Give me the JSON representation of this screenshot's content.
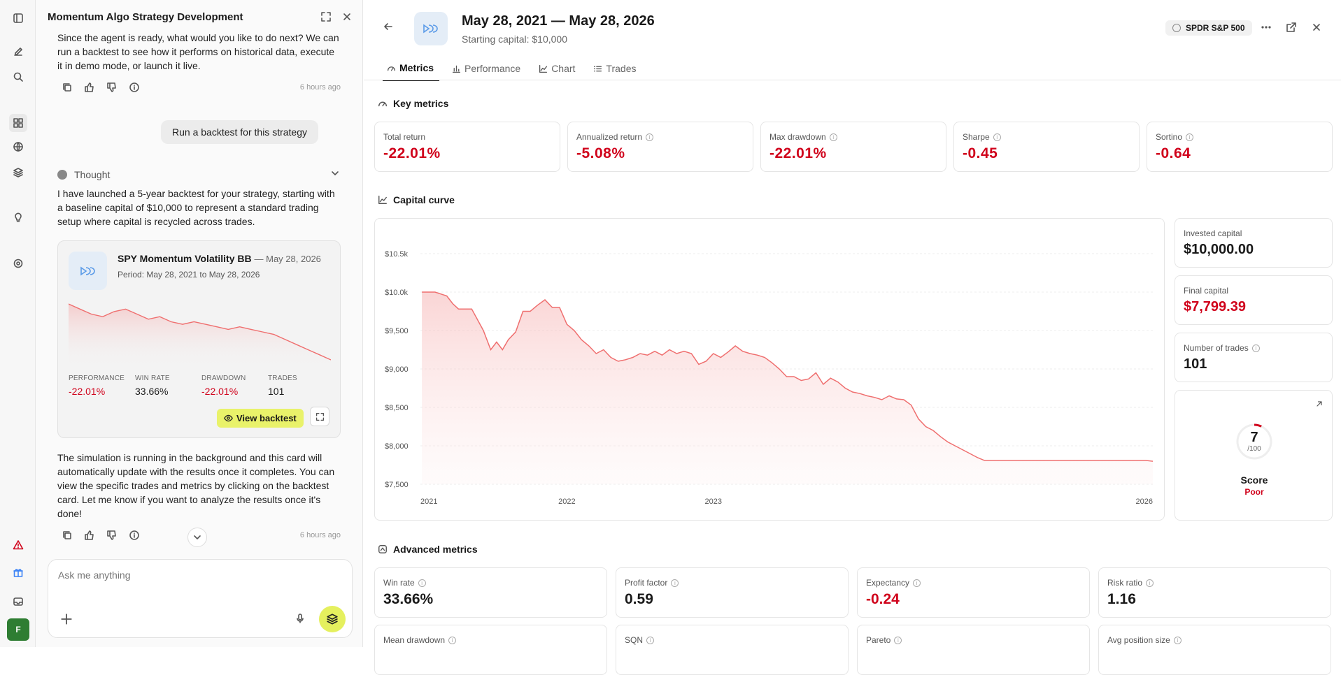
{
  "chat": {
    "title": "Momentum Algo Strategy Development",
    "msg1": "Since the agent is ready, what would you like to do next? We can run a backtest to see how it performs on historical data, execute it in demo mode, or launch it live.",
    "time1": "6 hours ago",
    "user_msg": "Run a backtest for this strategy",
    "thought_label": "Thought",
    "msg2": "I have launched a 5-year backtest for your strategy, starting with a baseline capital of $10,000 to represent a standard trading setup where capital is recycled across trades.",
    "card": {
      "title": "SPY Momentum Volatility BB",
      "date": "— May 28, 2026",
      "period": "Period: May 28, 2021 to May 28, 2026",
      "stats": [
        {
          "label": "PERFORMANCE",
          "value": "-22.01%"
        },
        {
          "label": "WIN RATE",
          "value": "33.66%"
        },
        {
          "label": "DRAWDOWN",
          "value": "-22.01%"
        },
        {
          "label": "TRADES",
          "value": "101"
        }
      ],
      "view_label": "View backtest"
    },
    "msg3": "The simulation is running in the background and this card will automatically update with the results once it completes. You can view the specific trades and metrics by clicking on the backtest card. Let me know if you want to analyze the results once it's done!",
    "time2": "6 hours ago",
    "input_placeholder": "Ask me anything"
  },
  "avatar": "F",
  "main": {
    "title": "May 28, 2021 — May 28, 2026",
    "subtitle": "Starting capital: $10,000",
    "ticker": "SPDR S&P 500",
    "tabs": [
      {
        "label": "Metrics",
        "icon": "gauge-icon"
      },
      {
        "label": "Performance",
        "icon": "bar-icon"
      },
      {
        "label": "Chart",
        "icon": "line-icon"
      },
      {
        "label": "Trades",
        "icon": "list-icon"
      }
    ],
    "key_metrics_title": "Key metrics",
    "key_metrics": [
      {
        "label": "Total return",
        "value": "-22.01%",
        "info": false
      },
      {
        "label": "Annualized return",
        "value": "-5.08%",
        "info": true
      },
      {
        "label": "Max drawdown",
        "value": "-22.01%",
        "info": true
      },
      {
        "label": "Sharpe",
        "value": "-0.45",
        "info": true
      },
      {
        "label": "Sortino",
        "value": "-0.64",
        "info": true
      }
    ],
    "capital_curve_title": "Capital curve",
    "side_metrics": [
      {
        "label": "Invested capital",
        "value": "$10,000.00"
      },
      {
        "label": "Final capital",
        "value": "$7,799.39"
      },
      {
        "label": "Number of trades",
        "value": "101"
      }
    ],
    "score": {
      "value": "7",
      "of": "/100",
      "label": "Score",
      "quality": "Poor",
      "fraction": 0.07
    },
    "advanced_title": "Advanced metrics",
    "advanced": [
      {
        "label": "Win rate",
        "value": "33.66%"
      },
      {
        "label": "Profit factor",
        "value": "0.59"
      },
      {
        "label": "Expectancy",
        "value": "-0.24"
      },
      {
        "label": "Risk ratio",
        "value": "1.16"
      },
      {
        "label": "Mean drawdown",
        "value": ""
      },
      {
        "label": "SQN",
        "value": ""
      },
      {
        "label": "Pareto",
        "value": ""
      },
      {
        "label": "Avg position size",
        "value": ""
      }
    ],
    "colors": {
      "negative": "#d0021b",
      "accent": "#e9f26a",
      "line": "#ef6f6f"
    }
  },
  "chart_data": {
    "type": "area",
    "x_ticks": [
      "2021",
      "2022",
      "2023",
      "2026"
    ],
    "y_ticks": [
      "$10.5k",
      "$10.0k",
      "$9,500",
      "$9,000",
      "$8,500",
      "$8,000",
      "$7,500"
    ],
    "ylim": [
      7500,
      10500
    ],
    "xlim": [
      2021.4,
      2026.4
    ],
    "x": [
      2021.41,
      2021.5,
      2021.58,
      2021.62,
      2021.66,
      2021.75,
      2021.83,
      2021.88,
      2021.92,
      2021.96,
      2022.0,
      2022.05,
      2022.1,
      2022.15,
      2022.2,
      2022.25,
      2022.3,
      2022.35,
      2022.4,
      2022.45,
      2022.5,
      2022.55,
      2022.6,
      2022.65,
      2022.7,
      2022.75,
      2022.8,
      2022.85,
      2022.9,
      2022.95,
      2023.0,
      2023.05,
      2023.1,
      2023.15,
      2023.2,
      2023.25,
      2023.3,
      2023.35,
      2023.4,
      2023.45,
      2023.5,
      2023.55,
      2023.6,
      2023.65,
      2023.7,
      2023.75,
      2023.8,
      2023.85,
      2023.9,
      2023.95,
      2024.0,
      2024.05,
      2024.1,
      2024.15,
      2024.2,
      2024.25,
      2024.3,
      2024.35,
      2024.4,
      2024.45,
      2024.5,
      2024.55,
      2024.6,
      2024.65,
      2024.7,
      2024.75,
      2024.8,
      2024.85,
      2024.9,
      2024.95,
      2025.0,
      2025.05,
      2025.1,
      2025.15,
      2025.2,
      2025.25,
      2025.3,
      2025.35,
      2025.4,
      2025.45,
      2025.5,
      2025.55,
      2025.6,
      2025.65,
      2025.7,
      2025.75,
      2025.8,
      2025.85,
      2025.9,
      2025.95,
      2026.0,
      2026.05,
      2026.1,
      2026.15,
      2026.2,
      2026.25,
      2026.3,
      2026.35,
      2026.4
    ],
    "values": [
      10000,
      10000,
      9950,
      9850,
      9780,
      9780,
      9500,
      9250,
      9350,
      9250,
      9380,
      9480,
      9750,
      9750,
      9830,
      9900,
      9800,
      9800,
      9580,
      9500,
      9380,
      9300,
      9200,
      9250,
      9150,
      9100,
      9120,
      9150,
      9200,
      9180,
      9230,
      9180,
      9250,
      9200,
      9230,
      9200,
      9060,
      9100,
      9200,
      9150,
      9220,
      9300,
      9230,
      9200,
      9180,
      9150,
      9080,
      9000,
      8900,
      8900,
      8850,
      8870,
      8950,
      8800,
      8880,
      8830,
      8750,
      8700,
      8680,
      8650,
      8630,
      8600,
      8650,
      8610,
      8600,
      8530,
      8350,
      8250,
      8200,
      8120,
      8050,
      8000,
      7950,
      7900,
      7850,
      7810,
      7810,
      7810,
      7810,
      7810,
      7810,
      7810,
      7810,
      7810,
      7810,
      7810,
      7810,
      7810,
      7810,
      7810,
      7810,
      7810,
      7810,
      7810,
      7810,
      7810,
      7810,
      7810,
      7799
    ]
  },
  "spark_data": {
    "values": [
      100,
      98,
      96,
      95,
      97,
      98,
      96,
      94,
      95,
      93,
      92,
      93,
      92,
      91,
      90,
      91,
      90,
      89,
      88,
      86,
      84,
      82,
      80,
      78
    ]
  }
}
